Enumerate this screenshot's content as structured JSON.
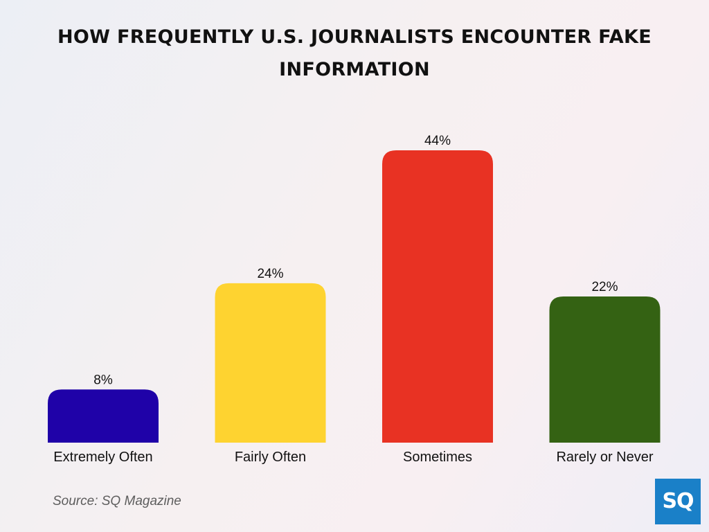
{
  "chart_data": {
    "type": "bar",
    "title": "HOW FREQUENTLY U.S. JOURNALISTS ENCOUNTER FAKE INFORMATION",
    "categories": [
      "Extremely Often",
      "Fairly Often",
      "Sometimes",
      "Rarely or Never"
    ],
    "values": [
      8,
      24,
      44,
      22
    ],
    "value_labels": [
      "8%",
      "24%",
      "44%",
      "22%"
    ],
    "colors": [
      "#1f02a8",
      "#fed330",
      "#e83223",
      "#346213"
    ],
    "xlabel": "",
    "ylabel": "",
    "ylim": [
      0,
      44
    ],
    "grid": false,
    "legend": "none"
  },
  "footer": {
    "source": "Source: SQ Magazine"
  },
  "logo": {
    "text": "SQ",
    "color": "#1a80c8"
  }
}
